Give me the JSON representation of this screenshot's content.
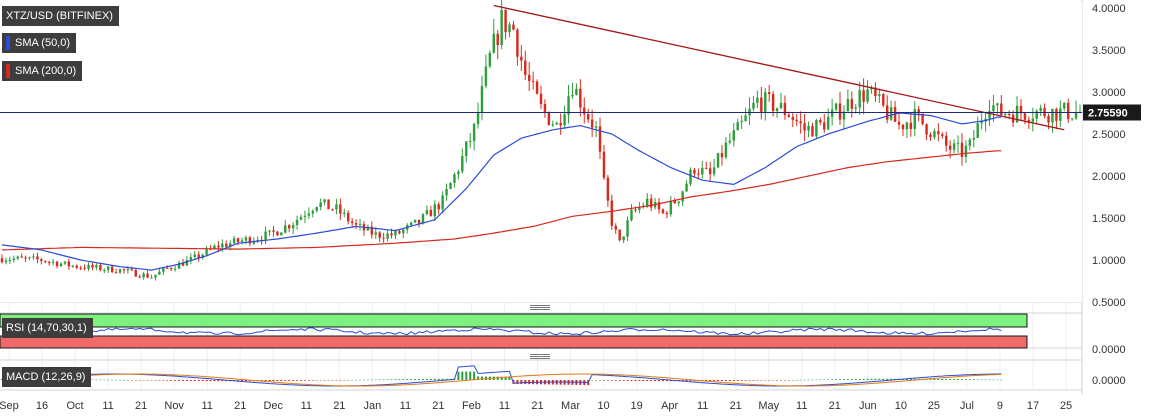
{
  "instrument": {
    "title": "XTZ/USD (BITFINEX)",
    "last_price_label": "2.75590"
  },
  "overlays": [
    {
      "label": "SMA (50,0)",
      "color": "#2b4bd6"
    },
    {
      "label": "SMA (200,0)",
      "color": "#d42a1e"
    }
  ],
  "indicators": {
    "rsi_label": "RSI (14,70,30,1)",
    "rsi_tick": "0.0000",
    "macd_label": "MACD (12,26,9)",
    "macd_tick": "0.0000"
  },
  "colors": {
    "up": "#2f9e3f",
    "down": "#d82b1e",
    "sma50": "#2b4bd6",
    "sma200": "#d42a1e",
    "trendline": "#a31616",
    "price_line": "#1f2a78",
    "rsi_over": "#7ef07e",
    "rsi_under": "#f06a6a"
  },
  "chart_data": {
    "type": "candlestick",
    "price_axis": {
      "ticks": [
        "4.0000",
        "3.5000",
        "3.0000",
        "2.5000",
        "2.0000",
        "1.5000",
        "1.0000",
        "0.5000"
      ],
      "ylim": [
        0.5,
        4.0
      ],
      "current_price": 2.7559
    },
    "time_axis": {
      "ticks": [
        "Sep",
        "16",
        "Oct",
        "11",
        "21",
        "Nov",
        "11",
        "21",
        "Dec",
        "11",
        "21",
        "Jan",
        "11",
        "21",
        "Feb",
        "11",
        "21",
        "Mar",
        "10",
        "19",
        "Apr",
        "11",
        "21",
        "May",
        "11",
        "21",
        "Jun",
        "10",
        "25",
        "Jul",
        "9",
        "17",
        "25"
      ]
    },
    "price_path": [
      [
        0,
        1.02
      ],
      [
        10,
        1.0
      ],
      [
        18,
        0.93
      ],
      [
        25,
        0.9
      ],
      [
        30,
        0.88
      ],
      [
        38,
        0.8
      ],
      [
        42,
        0.9
      ],
      [
        48,
        1.0
      ],
      [
        55,
        1.17
      ],
      [
        60,
        1.22
      ],
      [
        68,
        1.3
      ],
      [
        74,
        1.45
      ],
      [
        80,
        1.68
      ],
      [
        85,
        1.6
      ],
      [
        90,
        1.4
      ],
      [
        95,
        1.3
      ],
      [
        100,
        1.3
      ],
      [
        106,
        1.45
      ],
      [
        112,
        1.7
      ],
      [
        116,
        2.1
      ],
      [
        120,
        2.55
      ],
      [
        124,
        3.4
      ],
      [
        127,
        3.85
      ],
      [
        130,
        3.75
      ],
      [
        133,
        3.2
      ],
      [
        137,
        2.8
      ],
      [
        141,
        2.6
      ],
      [
        145,
        3.1
      ],
      [
        148,
        2.8
      ],
      [
        151,
        2.55
      ],
      [
        153,
        1.9
      ],
      [
        155,
        1.45
      ],
      [
        157,
        1.2
      ],
      [
        160,
        1.55
      ],
      [
        164,
        1.7
      ],
      [
        168,
        1.55
      ],
      [
        172,
        1.75
      ],
      [
        176,
        2.1
      ],
      [
        180,
        2.0
      ],
      [
        184,
        2.35
      ],
      [
        188,
        2.6
      ],
      [
        192,
        2.9
      ],
      [
        196,
        2.85
      ],
      [
        200,
        2.75
      ],
      [
        204,
        2.55
      ],
      [
        208,
        2.6
      ],
      [
        212,
        2.75
      ],
      [
        216,
        2.9
      ],
      [
        220,
        3.0
      ],
      [
        224,
        2.8
      ],
      [
        228,
        2.6
      ],
      [
        232,
        2.7
      ],
      [
        236,
        2.55
      ],
      [
        240,
        2.35
      ],
      [
        244,
        2.28
      ],
      [
        246,
        2.35
      ],
      [
        249,
        2.7
      ],
      [
        251,
        2.9
      ],
      [
        253,
        2.76
      ]
    ],
    "sma_50": [
      [
        0,
        1.18
      ],
      [
        10,
        1.12
      ],
      [
        20,
        1.0
      ],
      [
        30,
        0.92
      ],
      [
        38,
        0.88
      ],
      [
        45,
        0.95
      ],
      [
        52,
        1.05
      ],
      [
        60,
        1.2
      ],
      [
        70,
        1.25
      ],
      [
        80,
        1.32
      ],
      [
        90,
        1.4
      ],
      [
        100,
        1.35
      ],
      [
        110,
        1.48
      ],
      [
        118,
        1.85
      ],
      [
        125,
        2.25
      ],
      [
        132,
        2.45
      ],
      [
        140,
        2.55
      ],
      [
        147,
        2.6
      ],
      [
        155,
        2.5
      ],
      [
        162,
        2.3
      ],
      [
        170,
        2.1
      ],
      [
        178,
        1.95
      ],
      [
        186,
        1.9
      ],
      [
        194,
        2.1
      ],
      [
        202,
        2.35
      ],
      [
        210,
        2.5
      ],
      [
        220,
        2.65
      ],
      [
        228,
        2.75
      ],
      [
        236,
        2.72
      ],
      [
        244,
        2.62
      ],
      [
        250,
        2.66
      ],
      [
        253,
        2.7
      ]
    ],
    "sma_200": [
      [
        0,
        1.12
      ],
      [
        20,
        1.15
      ],
      [
        40,
        1.14
      ],
      [
        60,
        1.13
      ],
      [
        80,
        1.15
      ],
      [
        100,
        1.2
      ],
      [
        115,
        1.25
      ],
      [
        125,
        1.32
      ],
      [
        135,
        1.4
      ],
      [
        145,
        1.52
      ],
      [
        155,
        1.58
      ],
      [
        165,
        1.65
      ],
      [
        175,
        1.75
      ],
      [
        185,
        1.82
      ],
      [
        195,
        1.9
      ],
      [
        205,
        2.0
      ],
      [
        215,
        2.1
      ],
      [
        225,
        2.17
      ],
      [
        235,
        2.22
      ],
      [
        245,
        2.27
      ],
      [
        253,
        2.3
      ]
    ],
    "trendline": {
      "from": [
        125,
        4.03
      ],
      "to": [
        270,
        2.55
      ]
    },
    "rsi": {
      "overbought": 70,
      "oversold": 30
    },
    "macd": {
      "zero": 0
    }
  }
}
